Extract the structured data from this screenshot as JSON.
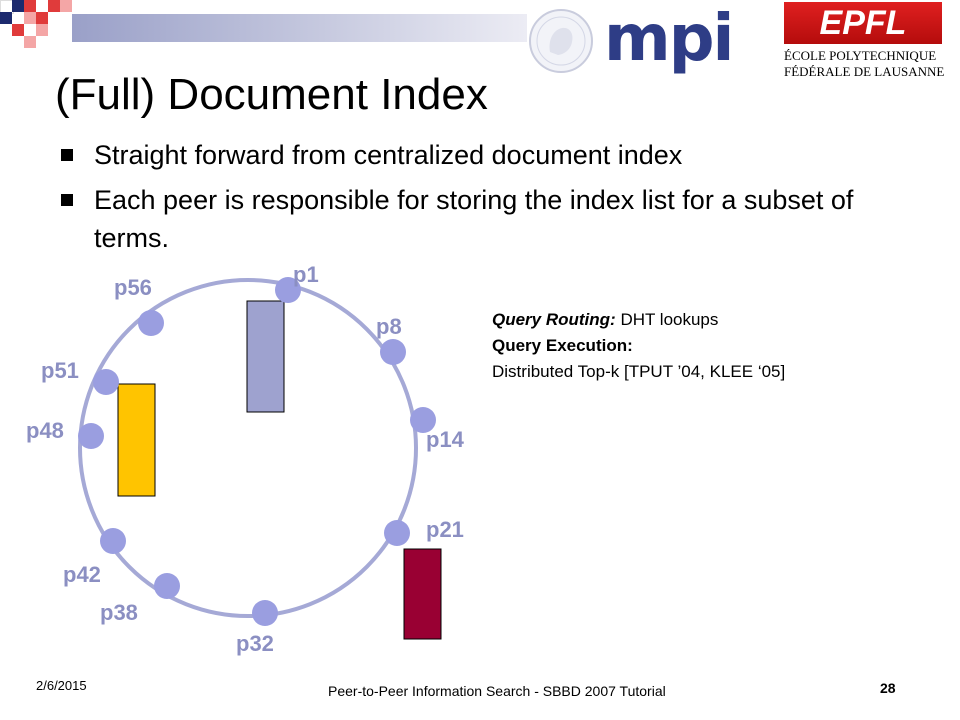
{
  "slide": {
    "title": "(Full) Document Index",
    "bullets": [
      "Straight forward from centralized document index",
      "Each peer is responsible for storing the index list for a subset of terms."
    ]
  },
  "logos": {
    "mpi_text": "mpi",
    "epfl_text": "EPFL",
    "epfl_line1": "ÉCOLE POLYTECHNIQUE",
    "epfl_line2": "FÉDÉRALE DE LAUSANNE"
  },
  "ring": {
    "nodes": [
      "p1",
      "p8",
      "p14",
      "p21",
      "p32",
      "p38",
      "p42",
      "p48",
      "p51",
      "p56"
    ],
    "colors": {
      "ring": "#a5a9d6",
      "node": "#9a9ee0",
      "bar_peer1": "#9ea2cf",
      "bar_peer48": "#ffc400",
      "bar_peer21": "#990033",
      "label": "#8b8fc2"
    }
  },
  "info": {
    "routing_label": "Query Routing:",
    "routing_value": " DHT lookups",
    "execution_label": "Query Execution:",
    "execution_value": "Distributed Top-k  [TPUT ’04, KLEE ‘05]"
  },
  "footer": {
    "date": "2/6/2015",
    "text": "Peer-to-Peer Information Search - SBBD 2007 Tutorial",
    "page": "28"
  }
}
